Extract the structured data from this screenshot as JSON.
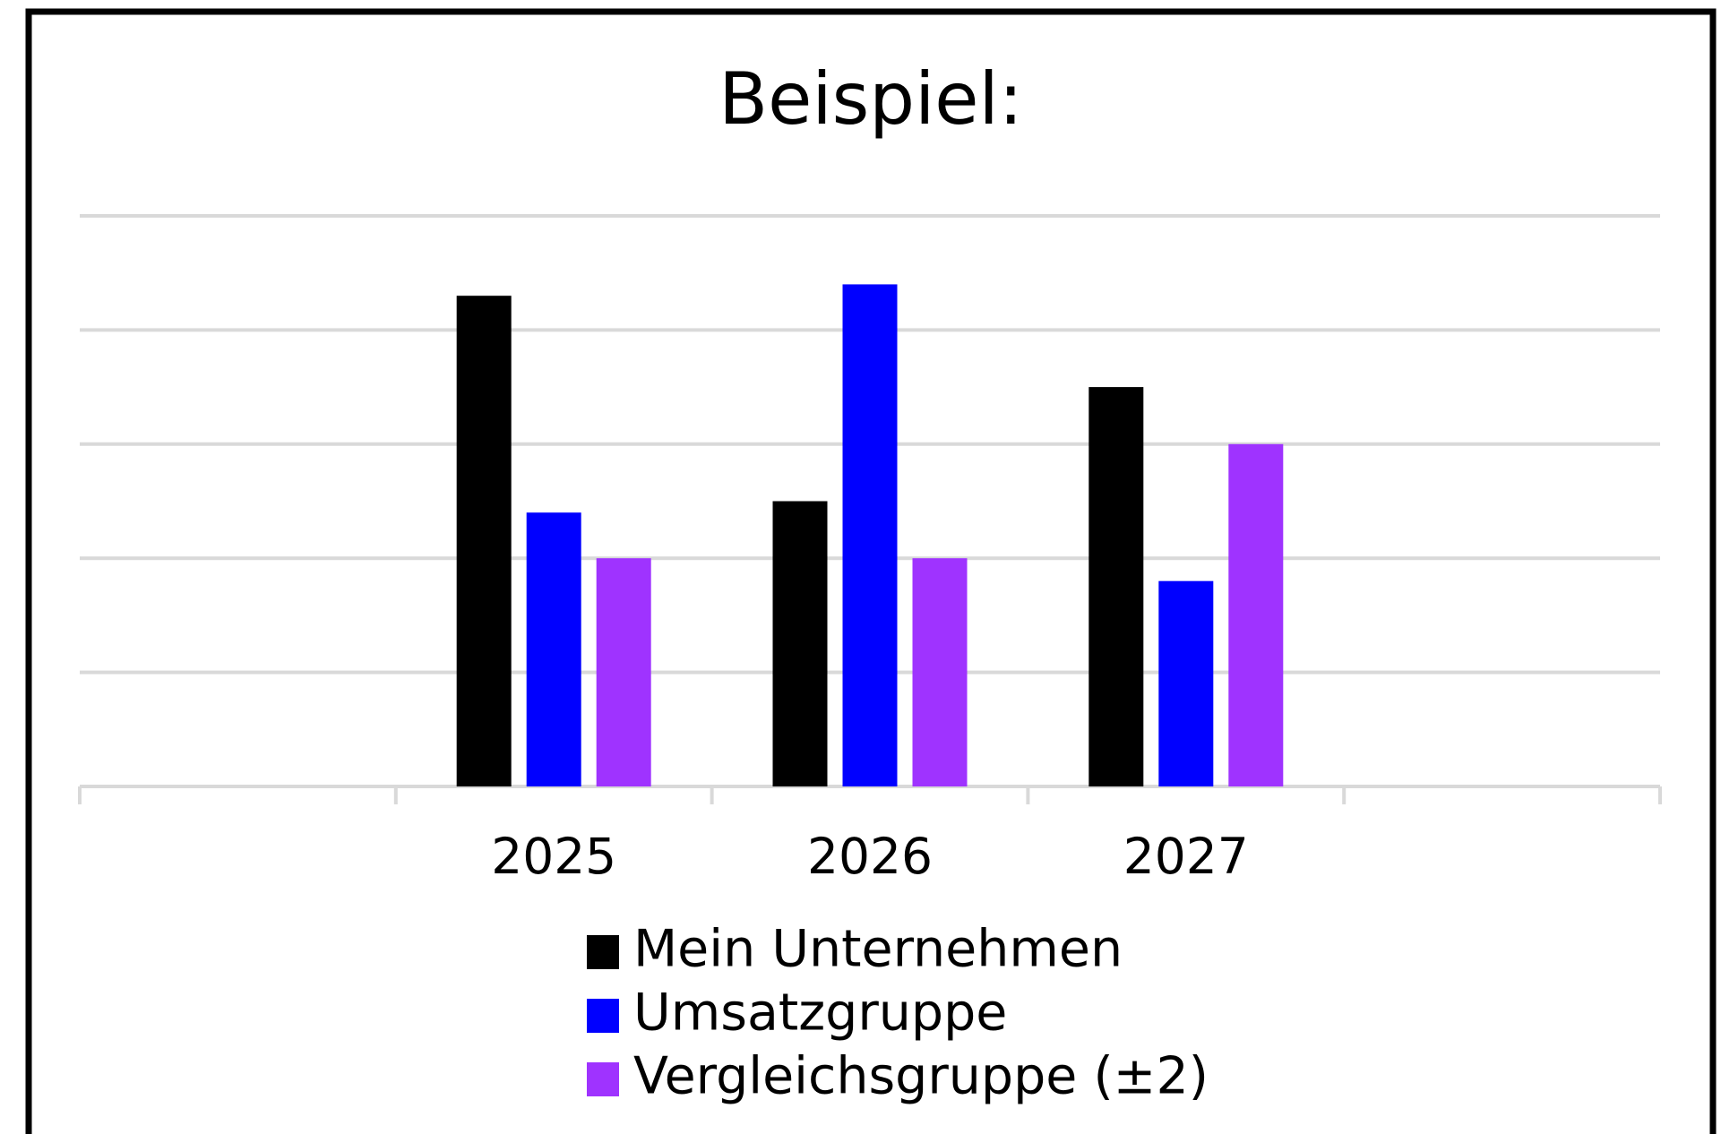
{
  "chart_data": {
    "type": "bar",
    "title": "Beispiel:",
    "categories": [
      null,
      "2025",
      "2026",
      "2027",
      null
    ],
    "series": [
      {
        "name": "Mein Unternehmen",
        "color": "#000000",
        "values": [
          null,
          4.3,
          2.5,
          3.5,
          null
        ]
      },
      {
        "name": "Umsatzgruppe",
        "color": "#0000ff",
        "values": [
          null,
          2.4,
          4.4,
          1.8,
          null
        ]
      },
      {
        "name": "Vergleichsgruppe (±2)",
        "color": "#9f33ff",
        "values": [
          null,
          2.0,
          2.0,
          3.0,
          null
        ]
      }
    ],
    "ylim": [
      0,
      5
    ],
    "yticks": [
      0,
      1,
      2,
      3,
      4,
      5
    ],
    "grid": true,
    "legend": "bottom"
  }
}
